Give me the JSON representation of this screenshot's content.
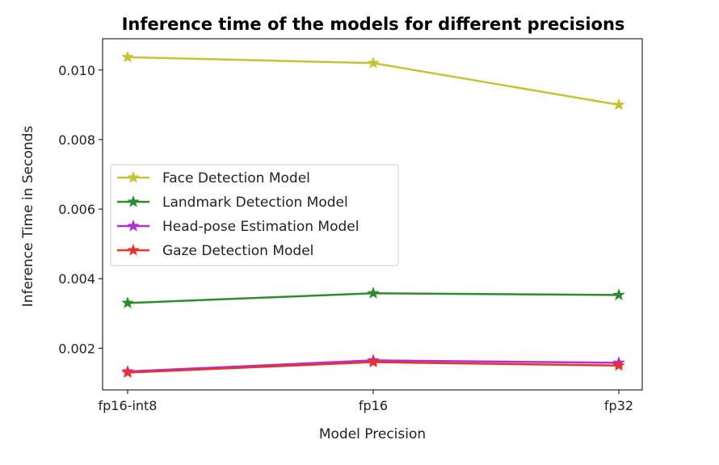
{
  "chart_data": {
    "type": "line",
    "title": "Inference time of the models for different precisions",
    "xlabel": "Model Precision",
    "ylabel": "Inference Time in Seconds",
    "categories": [
      "fp16-int8",
      "fp16",
      "fp32"
    ],
    "ylim": [
      0.0008,
      0.0109
    ],
    "yticks": [
      "0.002",
      "0.004",
      "0.006",
      "0.008",
      "0.010"
    ],
    "grid": false,
    "legend_position": "center-left",
    "marker": "star",
    "series": [
      {
        "name": "Face Detection Model",
        "color": "#c5c234",
        "values": [
          0.01037,
          0.0102,
          0.009
        ]
      },
      {
        "name": "Landmark Detection Model",
        "color": "#2e8b2e",
        "values": [
          0.0033,
          0.00358,
          0.00353
        ]
      },
      {
        "name": "Head-pose Estimation Model",
        "color": "#b030d0",
        "values": [
          0.00133,
          0.00165,
          0.00158
        ]
      },
      {
        "name": "Gaze Detection Model",
        "color": "#e8322c",
        "values": [
          0.0013,
          0.0016,
          0.0015
        ]
      }
    ]
  }
}
